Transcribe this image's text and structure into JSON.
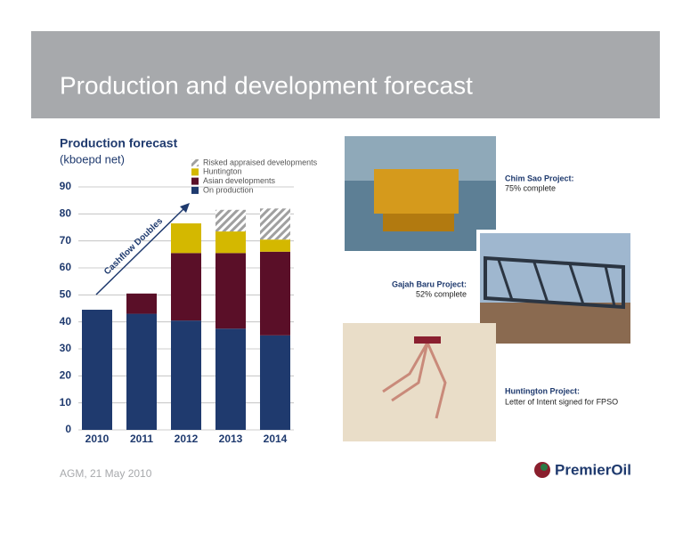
{
  "title": "Production and development forecast",
  "chart_data": {
    "type": "bar",
    "stacked": true,
    "title": "Production forecast",
    "subtitle": "(kboepd net)",
    "annotation": "Cashflow Doubles",
    "categories": [
      "2010",
      "2011",
      "2012",
      "2013",
      "2014"
    ],
    "series": [
      {
        "name": "On production",
        "color": "#1f3a6e",
        "values": [
          44.5,
          43,
          40.5,
          37.5,
          35
        ]
      },
      {
        "name": "Asian developments",
        "color": "#5a0f28",
        "values": [
          null,
          7.5,
          25,
          28,
          31
        ]
      },
      {
        "name": "Huntington",
        "color": "#d4b800",
        "values": [
          null,
          null,
          11,
          8,
          4.5
        ]
      },
      {
        "name": "Risked appraised developments",
        "color": "#a0a0a0",
        "hatched": true,
        "values": [
          null,
          null,
          null,
          8,
          11.5
        ]
      }
    ],
    "ylim": [
      0,
      90
    ],
    "yticks": [
      0,
      10,
      20,
      30,
      40,
      50,
      60,
      70,
      80,
      90
    ],
    "grid": true
  },
  "projects": [
    {
      "name": "Chim Sao Project:",
      "status": "75% complete"
    },
    {
      "name": "Gajah Baru Project:",
      "status": "52% complete"
    },
    {
      "name": "Huntington Project:",
      "status": "Letter of Intent signed for FPSO"
    }
  ],
  "footer": "AGM, 21 May 2010",
  "logo": "PremierOil"
}
